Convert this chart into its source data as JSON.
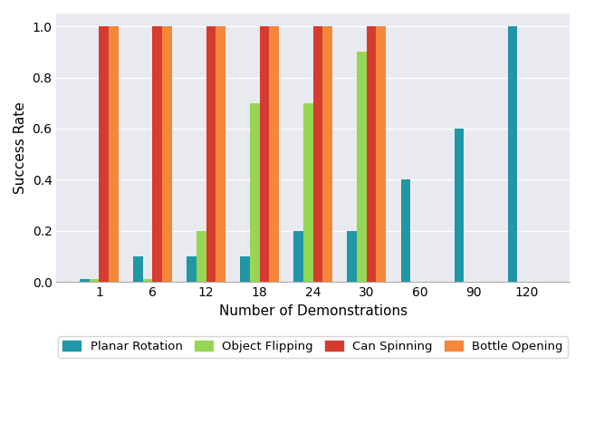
{
  "x_labels": [
    "1",
    "6",
    "12",
    "18",
    "24",
    "30",
    "60",
    "90",
    "120"
  ],
  "series": {
    "Planar Rotation": [
      0.01,
      0.1,
      0.1,
      0.1,
      0.2,
      0.2,
      0.4,
      0.6,
      1.0
    ],
    "Object Flipping": [
      0.01,
      0.01,
      0.2,
      0.7,
      0.7,
      0.9,
      0.0,
      0.0,
      0.0
    ],
    "Can Spinning": [
      1.0,
      1.0,
      1.0,
      1.0,
      1.0,
      1.0,
      0.0,
      0.0,
      0.0
    ],
    "Bottle Opening": [
      1.0,
      1.0,
      1.0,
      1.0,
      1.0,
      1.0,
      0.0,
      0.0,
      0.0
    ]
  },
  "colors": {
    "Planar Rotation": "#2196A6",
    "Object Flipping": "#96D654",
    "Can Spinning": "#D63B2F",
    "Bottle Opening": "#F4873A"
  },
  "ylabel": "Success Rate",
  "xlabel": "Number of Demonstrations",
  "ylim": [
    0.0,
    1.05
  ],
  "background_color": "#E8EAF0",
  "figure_background": "#FFFFFF",
  "bar_width": 0.18,
  "legend_labels": [
    "Planar Rotation",
    "Object Flipping",
    "Can Spinning",
    "Bottle Opening"
  ]
}
